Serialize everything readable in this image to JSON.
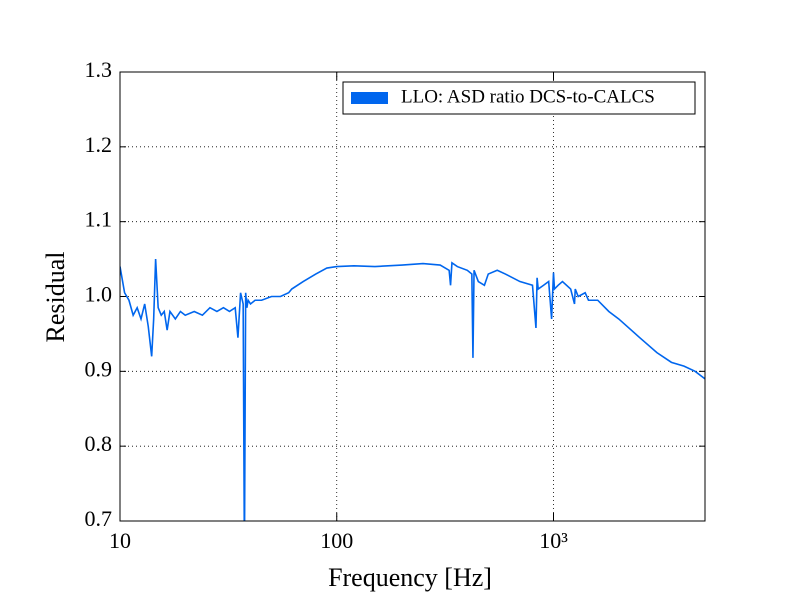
{
  "chart_data": {
    "type": "line",
    "xlabel": "Frequency [Hz]",
    "ylabel": "Residual",
    "xscale": "log",
    "grid": true,
    "legend_loc": "upper right",
    "xlim": [
      10,
      5000
    ],
    "ylim": [
      0.7,
      1.3
    ],
    "xticks": [
      10,
      100,
      {
        "value": 1000,
        "label": "10³"
      }
    ],
    "yticks": [
      0.7,
      0.8,
      0.9,
      {
        "value": 1,
        "label": "1.0"
      },
      1.1,
      1.2,
      1.3
    ],
    "x": [
      10,
      10.5,
      11,
      11.5,
      12,
      12.5,
      13,
      13.5,
      14,
      14.3,
      14.6,
      15,
      15.5,
      16,
      16.5,
      17,
      18,
      19,
      20,
      22,
      24,
      26,
      28,
      30,
      32,
      34,
      35,
      36,
      37,
      37.5,
      38,
      38.5,
      39,
      40,
      42,
      45,
      50,
      55,
      60,
      62,
      70,
      80,
      90,
      100,
      120,
      150,
      200,
      250,
      300,
      330,
      335,
      340,
      360,
      400,
      420,
      425,
      430,
      450,
      480,
      500,
      550,
      600,
      700,
      800,
      830,
      840,
      850,
      900,
      950,
      980,
      1000,
      1010,
      1050,
      1100,
      1200,
      1250,
      1260,
      1300,
      1400,
      1450,
      1500,
      1600,
      1800,
      2000,
      2500,
      3000,
      3500,
      4000,
      4500,
      5000
    ],
    "series": [
      {
        "name": "LLO: ASD ratio DCS-to-CALCS",
        "color": "#0066ee",
        "values": [
          1.04,
          1.005,
          0.995,
          0.975,
          0.985,
          0.97,
          0.99,
          0.96,
          0.92,
          0.97,
          1.05,
          0.985,
          0.975,
          0.98,
          0.955,
          0.98,
          0.97,
          0.98,
          0.975,
          0.98,
          0.975,
          0.985,
          0.98,
          0.985,
          0.98,
          0.985,
          0.945,
          1.005,
          0.99,
          0.65,
          1.005,
          0.985,
          0.995,
          0.99,
          0.995,
          0.995,
          1.0,
          1.0,
          1.005,
          1.01,
          1.02,
          1.03,
          1.038,
          1.04,
          1.041,
          1.04,
          1.042,
          1.044,
          1.042,
          1.035,
          1.015,
          1.045,
          1.04,
          1.035,
          1.03,
          0.918,
          1.035,
          1.02,
          1.015,
          1.03,
          1.035,
          1.03,
          1.02,
          1.015,
          0.958,
          1.025,
          1.01,
          1.015,
          1.02,
          0.97,
          1.032,
          1.01,
          1.015,
          1.02,
          1.01,
          0.99,
          1.01,
          1.0,
          1.005,
          0.995,
          0.995,
          0.995,
          0.98,
          0.97,
          0.945,
          0.925,
          0.912,
          0.907,
          0.9,
          0.89
        ]
      }
    ]
  }
}
